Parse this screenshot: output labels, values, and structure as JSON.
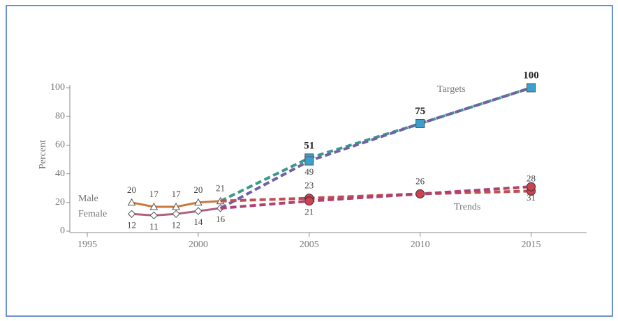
{
  "chart_data": {
    "type": "line",
    "y_label": "Percent",
    "annotations": [
      "Male",
      "Female",
      "Targets",
      "Trends"
    ],
    "xlim": [
      1995,
      2017.5
    ],
    "xticks": [
      1995,
      2000,
      2005,
      2010,
      2015
    ],
    "ylim": [
      0,
      100
    ],
    "yticks": [
      0,
      20,
      40,
      60,
      80,
      100
    ],
    "series": [
      {
        "name": "Male",
        "style": "solid",
        "marker": "triangle",
        "color": "#c8783c",
        "x": [
          1997,
          1998,
          1999,
          2000,
          2001
        ],
        "values": [
          20,
          17,
          17,
          20,
          21
        ]
      },
      {
        "name": "Female",
        "style": "solid",
        "marker": "diamond",
        "color": "#b06080",
        "x": [
          1997,
          1998,
          1999,
          2000,
          2001
        ],
        "values": [
          12,
          11,
          12,
          14,
          16
        ]
      },
      {
        "style": "dashed",
        "marker": "square",
        "color": "#3a9a8a",
        "x": [
          2001,
          2005,
          2010,
          2015
        ],
        "values": [
          21,
          51,
          75,
          100
        ]
      },
      {
        "style": "dashed",
        "marker": "square",
        "color": "#7060a8",
        "x": [
          2001,
          2005,
          2010,
          2015
        ],
        "values": [
          16,
          49,
          75,
          100
        ]
      },
      {
        "style": "dashed",
        "marker": "circle",
        "color": "#c05050",
        "x": [
          2001,
          2005,
          2010,
          2015
        ],
        "values": [
          21,
          23,
          26,
          28
        ]
      },
      {
        "style": "dashed",
        "marker": "circle",
        "color": "#b04070",
        "x": [
          2001,
          2005,
          2010,
          2015
        ],
        "values": [
          16,
          21,
          26,
          31
        ]
      }
    ]
  }
}
